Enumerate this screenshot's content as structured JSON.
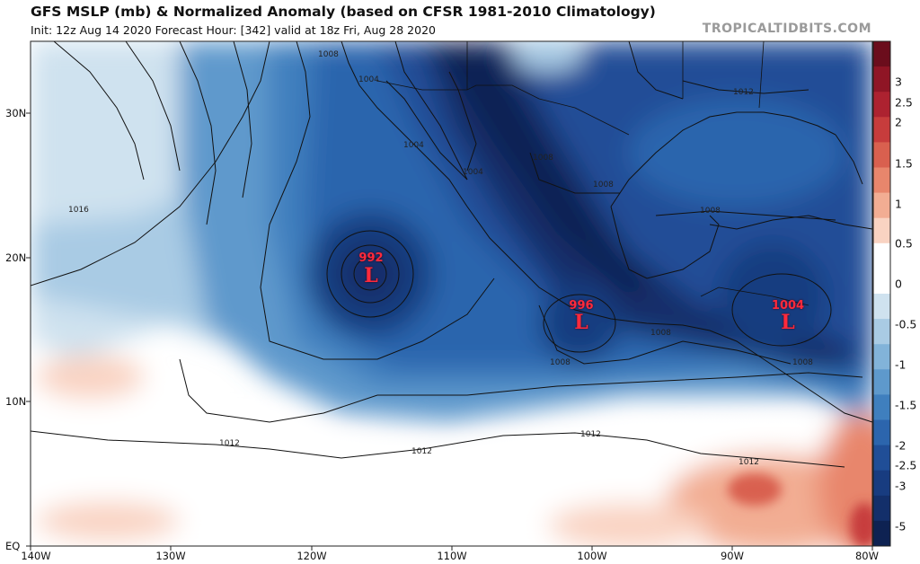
{
  "header": {
    "title": "GFS MSLP (mb) & Normalized Anomaly (based on CFSR 1981-2010 Climatology)",
    "subtitle": "Init: 12z Aug 14 2020   Forecast Hour: [342]   valid at 18z Fri, Aug 28 2020",
    "brand": "TROPICALTIDBITS.COM"
  },
  "axes": {
    "latitudes": [
      "30N",
      "20N",
      "10N",
      "EQ"
    ],
    "longitudes": [
      "140W",
      "130W",
      "120W",
      "110W",
      "100W",
      "90W",
      "80W"
    ]
  },
  "colorbar": {
    "labels": [
      "3",
      "2.5",
      "2",
      "1.5",
      "1",
      "0.5",
      "0",
      "-0.5",
      "-1",
      "-1.5",
      "-2",
      "-2.5",
      "-3",
      "-5"
    ],
    "colors": [
      "#6b0d1c",
      "#8f1525",
      "#ad2230",
      "#c73c3c",
      "#d9604f",
      "#e8866c",
      "#f2ad93",
      "#f9d3c2",
      "#ffffff",
      "#ffffff",
      "#cfe2ef",
      "#a9cbe4",
      "#82b3d9",
      "#5e99cc",
      "#3f7fbe",
      "#2c65ad",
      "#204e97",
      "#183c80",
      "#132f6a",
      "#0e2252"
    ]
  },
  "lows": [
    {
      "value": "992",
      "label": "L"
    },
    {
      "value": "996",
      "label": "L"
    },
    {
      "value": "1004",
      "label": "L"
    }
  ],
  "isobar_labels": [
    "1016",
    "1012",
    "1012",
    "1012",
    "1012",
    "1012",
    "1008",
    "1008",
    "1008",
    "1008",
    "1008",
    "1008",
    "1004",
    "1004",
    "1004",
    "1008"
  ],
  "colors": {
    "deep_negative": "#0e2252",
    "positive": "#f2ad93",
    "low_marker": "#ff2a3c"
  }
}
